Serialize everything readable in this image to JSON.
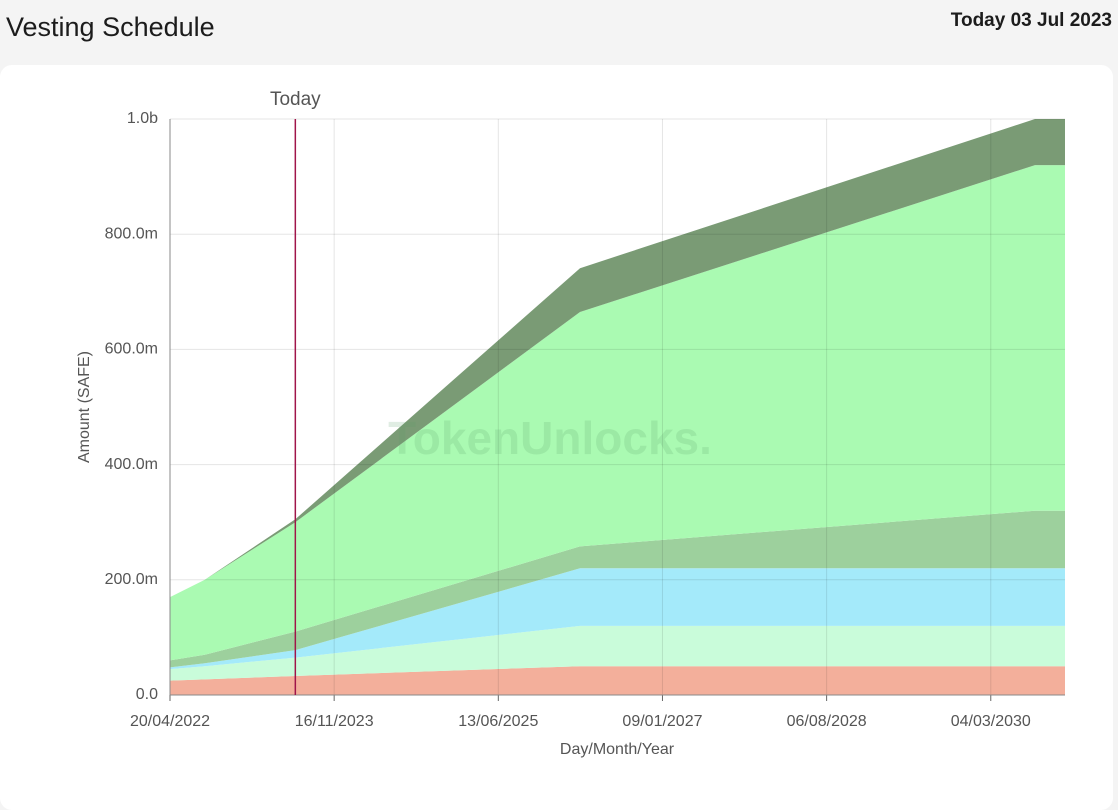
{
  "header": {
    "title": "Vesting Schedule",
    "date": "Today 03 Jul 2023"
  },
  "chart_data": {
    "type": "stacked-area",
    "x_label": "Day/Month/Year",
    "y_label": "Amount (SAFE)",
    "watermark": "TokenUnlocks.",
    "x": [
      "20/04/2022",
      "20/08/2022",
      "03/07/2023",
      "26/03/2026",
      "06/08/2030",
      "19/11/2030"
    ],
    "series": [
      {
        "color": "#f3af9b",
        "values": [
          25000000,
          27000000,
          33000000,
          50000000,
          50000000,
          50000000
        ]
      },
      {
        "color": "#c9fcda",
        "values": [
          20000000,
          23000000,
          32000000,
          70000000,
          70000000,
          70000000
        ]
      },
      {
        "color": "#a4eafa",
        "values": [
          3000000,
          5000000,
          13000000,
          100000000,
          100000000,
          100000000
        ]
      },
      {
        "color": "#9dd09d",
        "values": [
          12000000,
          15000000,
          32000000,
          38000000,
          100000000,
          100000000
        ]
      },
      {
        "color": "#aafab2",
        "values": [
          110000000,
          130000000,
          190000000,
          407000000,
          600000000,
          600000000
        ]
      },
      {
        "color": "#7a9b75",
        "values": [
          0,
          0,
          5000000,
          76000000,
          80000000,
          80000000
        ]
      }
    ],
    "today_marker": {
      "x": "03/07/2023",
      "label": "Today",
      "color": "#a0154a"
    },
    "xlim": [
      "20/04/2022",
      "19/11/2030"
    ],
    "xticks": [
      "20/04/2022",
      "16/11/2023",
      "13/06/2025",
      "09/01/2027",
      "06/08/2028",
      "04/03/2030"
    ],
    "ylim": [
      0,
      1000000000
    ],
    "yticks": [
      {
        "value": 0,
        "label": "0.0"
      },
      {
        "value": 200000000,
        "label": "200.0m"
      },
      {
        "value": 400000000,
        "label": "400.0m"
      },
      {
        "value": 600000000,
        "label": "600.0m"
      },
      {
        "value": 800000000,
        "label": "800.0m"
      },
      {
        "value": 1000000000,
        "label": "1.0b"
      }
    ],
    "grid": true
  }
}
